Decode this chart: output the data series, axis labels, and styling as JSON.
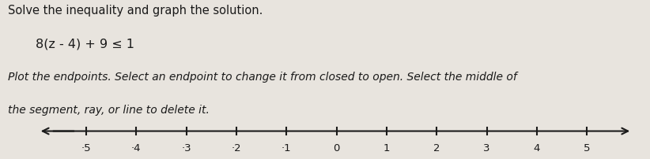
{
  "title_line1": "Solve the inequality and graph the solution.",
  "equation": "8(z - 4) + 9 ≤ 1",
  "instruction_line1": "Plot the endpoints. Select an endpoint to change it from closed to open. Select the middle of",
  "instruction_line2": "the segment, ray, or line to delete it.",
  "tick_labels": [
    -5,
    -4,
    -3,
    -2,
    -1,
    0,
    1,
    2,
    3,
    4,
    5
  ],
  "background_color": "#e8e4de",
  "text_color": "#1a1a1a",
  "line_color": "#1a1a1a",
  "fig_width": 8.22,
  "fig_height": 2.02,
  "dpi": 100,
  "title_fontsize": 10.5,
  "equation_fontsize": 11.5,
  "instruction_fontsize": 10,
  "tick_fontsize": 9.5
}
